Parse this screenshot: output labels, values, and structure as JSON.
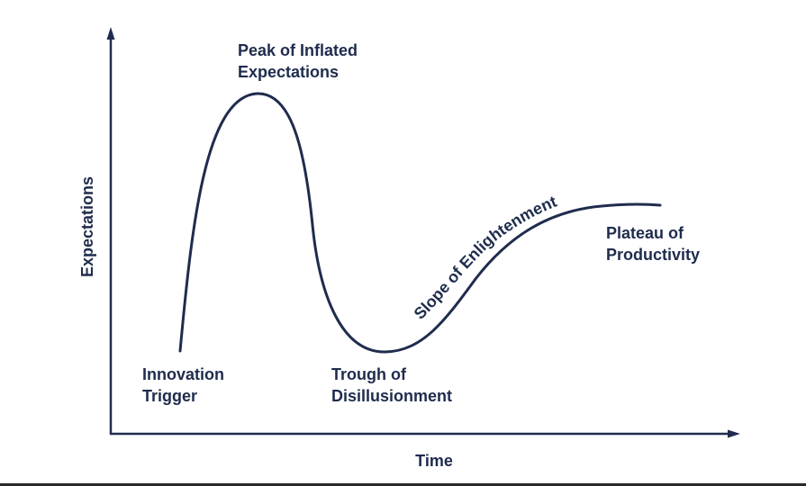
{
  "colors": {
    "ink": "#1f2c4d",
    "background": "#ffffff"
  },
  "axes": {
    "y_label": "Expectations",
    "x_label": "Time"
  },
  "phases": {
    "innovation_trigger": [
      "Innovation",
      "Trigger"
    ],
    "peak": [
      "Peak of Inflated",
      "Expectations"
    ],
    "trough": [
      "Trough of",
      "Disillusionment"
    ],
    "slope": "Slope of Enlightenment",
    "plateau": [
      "Plateau of",
      "Productivity"
    ]
  }
}
